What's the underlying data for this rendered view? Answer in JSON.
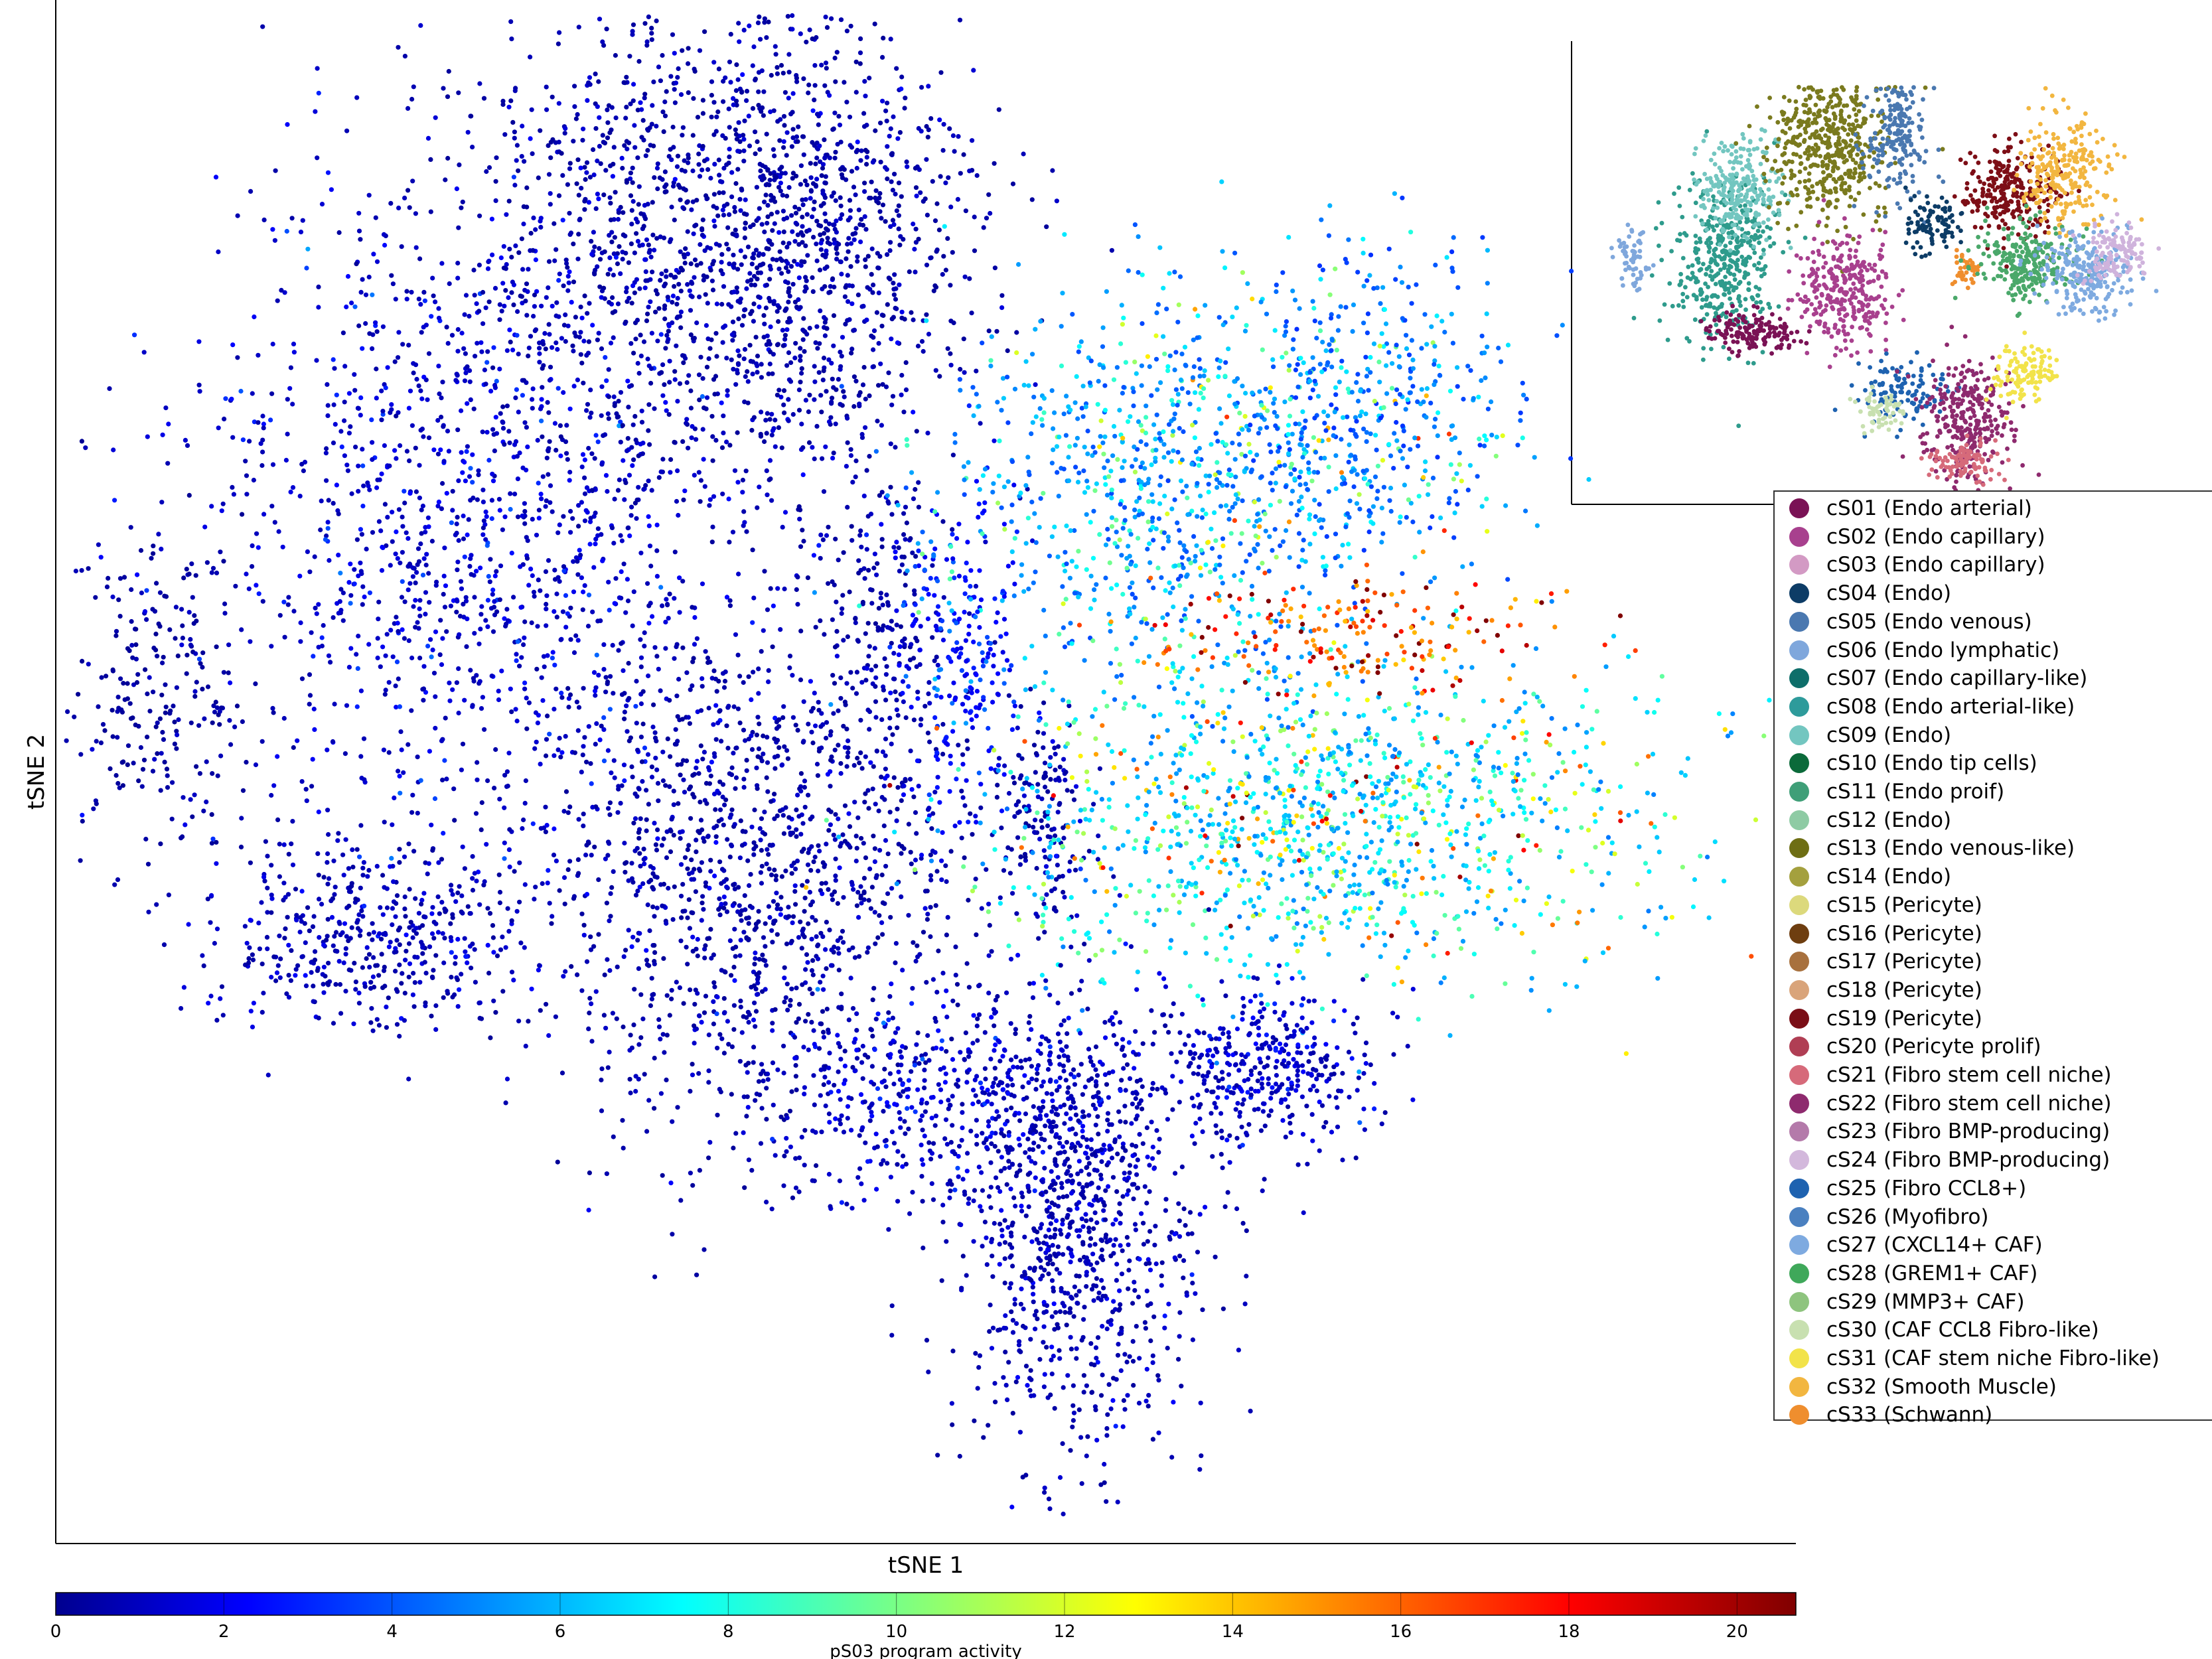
{
  "chart_data": {
    "type": "scatter",
    "xlabel": "tSNE 1",
    "ylabel": "tSNE 2",
    "colorbar": {
      "label": "pS03 program activity",
      "min": 0,
      "max": 20.7,
      "ticks": [
        0,
        2,
        4,
        6,
        8,
        10,
        12,
        14,
        16,
        18,
        20
      ],
      "colormap": "jet"
    },
    "point_color_default": "#1a1aa8",
    "clusters": [
      {
        "x": -45,
        "y": 5,
        "sx": 3,
        "sy": 5,
        "n": 220,
        "activity_mean": 0.4,
        "activity_spread": 0.6
      },
      {
        "x": -25,
        "y": 15,
        "sx": 9,
        "sy": 10,
        "n": 1400,
        "activity_mean": 0.8,
        "activity_spread": 1.5
      },
      {
        "x": -12,
        "y": 32,
        "sx": 7,
        "sy": 7,
        "n": 1100,
        "activity_mean": 0.5,
        "activity_spread": 0.8
      },
      {
        "x": -3,
        "y": 33,
        "sx": 5,
        "sy": 8,
        "n": 700,
        "activity_mean": 0.5,
        "activity_spread": 0.8
      },
      {
        "x": -8,
        "y": -6,
        "sx": 7,
        "sy": 8,
        "n": 1300,
        "activity_mean": 0.5,
        "activity_spread": 0.8
      },
      {
        "x": -32,
        "y": -10,
        "sx": 5,
        "sy": 3,
        "n": 450,
        "activity_mean": 0.6,
        "activity_spread": 1.0
      },
      {
        "x": 0,
        "y": 8,
        "sx": 2,
        "sy": 5,
        "n": 200,
        "activity_mean": 0.5,
        "activity_spread": 1.0
      },
      {
        "x": 5,
        "y": 7,
        "sx": 2,
        "sy": 5,
        "n": 230,
        "activity_mean": 2.0,
        "activity_spread": 2.0
      },
      {
        "x": 10,
        "y": -3,
        "sx": 1.5,
        "sy": 3,
        "n": 150,
        "activity_mean": 0.5,
        "activity_spread": 0.8
      },
      {
        "x": 18,
        "y": 17,
        "sx": 7,
        "sy": 6,
        "n": 900,
        "activity_mean": 4.0,
        "activity_spread": 4.5
      },
      {
        "x": 30,
        "y": 22,
        "sx": 5,
        "sy": 5,
        "n": 450,
        "activity_mean": 3.5,
        "activity_spread": 4.0
      },
      {
        "x": 28,
        "y": -3,
        "sx": 11,
        "sy": 5,
        "n": 1300,
        "activity_mean": 5.0,
        "activity_spread": 6.0
      },
      {
        "x": 30,
        "y": 8,
        "sx": 6,
        "sy": 2,
        "n": 180,
        "activity_mean": 14.0,
        "activity_spread": 6.0
      },
      {
        "x": 5,
        "y": -20,
        "sx": 7,
        "sy": 3,
        "n": 500,
        "activity_mean": 0.8,
        "activity_spread": 1.5
      },
      {
        "x": 12,
        "y": -28,
        "sx": 4,
        "sy": 7,
        "n": 900,
        "activity_mean": 0.6,
        "activity_spread": 1.0
      },
      {
        "x": 24,
        "y": -18,
        "sx": 3,
        "sy": 2.5,
        "n": 350,
        "activity_mean": 0.7,
        "activity_spread": 1.5
      }
    ],
    "inset_clusters": [
      {
        "x": -40,
        "y": 8,
        "sx": 1,
        "sy": 1.5,
        "n": 60,
        "color": "#7fa7dc"
      },
      {
        "x": -28,
        "y": 8,
        "sx": 3.5,
        "sy": 4,
        "n": 400,
        "color": "#2e9b8c"
      },
      {
        "x": -26,
        "y": 15,
        "sx": 3,
        "sy": 2.5,
        "n": 250,
        "color": "#73c6c0"
      },
      {
        "x": -24,
        "y": 1,
        "sx": 3,
        "sy": 1,
        "n": 150,
        "color": "#7a1255"
      },
      {
        "x": -14,
        "y": 20,
        "sx": 4,
        "sy": 4,
        "n": 500,
        "color": "#7a7a1e"
      },
      {
        "x": -5,
        "y": 21,
        "sx": 2,
        "sy": 3,
        "n": 200,
        "color": "#4a78b0"
      },
      {
        "x": -12,
        "y": 5,
        "sx": 3,
        "sy": 2.5,
        "n": 300,
        "color": "#a8408e"
      },
      {
        "x": 0,
        "y": 12,
        "sx": 2,
        "sy": 1.5,
        "n": 90,
        "color": "#0d3c66"
      },
      {
        "x": 4,
        "y": 7,
        "sx": 1,
        "sy": 1,
        "n": 40,
        "color": "#ef8e2e"
      },
      {
        "x": 10,
        "y": 15,
        "sx": 3,
        "sy": 2.5,
        "n": 250,
        "color": "#7d0e16"
      },
      {
        "x": 17,
        "y": 17,
        "sx": 3,
        "sy": 3,
        "n": 250,
        "color": "#f2b640"
      },
      {
        "x": 12,
        "y": 8,
        "sx": 3,
        "sy": 2,
        "n": 250,
        "color": "#4aa86a"
      },
      {
        "x": 20,
        "y": 7,
        "sx": 3,
        "sy": 2,
        "n": 250,
        "color": "#7eaae0"
      },
      {
        "x": 24,
        "y": 9,
        "sx": 2,
        "sy": 1.5,
        "n": 120,
        "color": "#cfb3dc"
      },
      {
        "x": -4,
        "y": -5,
        "sx": 3,
        "sy": 1.5,
        "n": 120,
        "color": "#1e62b0"
      },
      {
        "x": 4,
        "y": -8,
        "sx": 3,
        "sy": 3,
        "n": 300,
        "color": "#8e2a6e"
      },
      {
        "x": 12,
        "y": -3,
        "sx": 2,
        "sy": 1.5,
        "n": 120,
        "color": "#f2e34a"
      },
      {
        "x": -7,
        "y": -7,
        "sx": 1.5,
        "sy": 1,
        "n": 60,
        "color": "#c8e0b0"
      },
      {
        "x": 4,
        "y": -12,
        "sx": 2.5,
        "sy": 1,
        "n": 100,
        "color": "#d66a7a"
      }
    ],
    "legend": [
      {
        "label": "cS01 (Endo arterial)",
        "color": "#7a1255"
      },
      {
        "label": "cS02 (Endo capillary)",
        "color": "#a8408e"
      },
      {
        "label": "cS03 (Endo capillary)",
        "color": "#d39ac4"
      },
      {
        "label": "cS04 (Endo)",
        "color": "#0d3c66"
      },
      {
        "label": "cS05 (Endo venous)",
        "color": "#4a78b0"
      },
      {
        "label": "cS06 (Endo lymphatic)",
        "color": "#7fa7dc"
      },
      {
        "label": "cS07 (Endo capillary-like)",
        "color": "#0e6e6a"
      },
      {
        "label": "cS08 (Endo arterial-like)",
        "color": "#2e9b9b"
      },
      {
        "label": "cS09 (Endo)",
        "color": "#73c6c0"
      },
      {
        "label": "cS10 (Endo tip cells)",
        "color": "#0b6a3a"
      },
      {
        "label": "cS11 (Endo proif)",
        "color": "#3f9f78"
      },
      {
        "label": "cS12 (Endo)",
        "color": "#8ecba4"
      },
      {
        "label": "cS13 (Endo venous-like)",
        "color": "#6e6e14"
      },
      {
        "label": "cS14 (Endo)",
        "color": "#a4a03e"
      },
      {
        "label": "cS15 (Pericyte)",
        "color": "#dcd97c"
      },
      {
        "label": "cS16 (Pericyte)",
        "color": "#6e3e10"
      },
      {
        "label": "cS17 (Pericyte)",
        "color": "#a8713e"
      },
      {
        "label": "cS18 (Pericyte)",
        "color": "#d9a47a"
      },
      {
        "label": "cS19 (Pericyte)",
        "color": "#7a0e16"
      },
      {
        "label": "cS20 (Pericyte prolif)",
        "color": "#b03e54"
      },
      {
        "label": "cS21 (Fibro stem cell niche)",
        "color": "#d66a7a"
      },
      {
        "label": "cS22 (Fibro stem cell niche)",
        "color": "#8e2a6e"
      },
      {
        "label": "cS23 (Fibro BMP-producing)",
        "color": "#b47aaa"
      },
      {
        "label": "cS24 (Fibro BMP-producing)",
        "color": "#d3b8dc"
      },
      {
        "label": "cS25 (Fibro CCL8+)",
        "color": "#1e62b0"
      },
      {
        "label": "cS26 (Myofibro)",
        "color": "#4a80c0"
      },
      {
        "label": "cS27 (CXCL14+ CAF)",
        "color": "#7eaae0"
      },
      {
        "label": "cS28 (GREM1+ CAF)",
        "color": "#3fa85a"
      },
      {
        "label": "cS29 (MMP3+ CAF)",
        "color": "#8ec47e"
      },
      {
        "label": "cS30 (CAF CCL8 Fibro-like)",
        "color": "#c8e0b0"
      },
      {
        "label": "cS31 (CAF stem niche Fibro-like)",
        "color": "#f2e34a"
      },
      {
        "label": "cS32 (Smooth Muscle)",
        "color": "#f2b640"
      },
      {
        "label": "cS33 (Schwann)",
        "color": "#ef8e2e"
      }
    ]
  }
}
